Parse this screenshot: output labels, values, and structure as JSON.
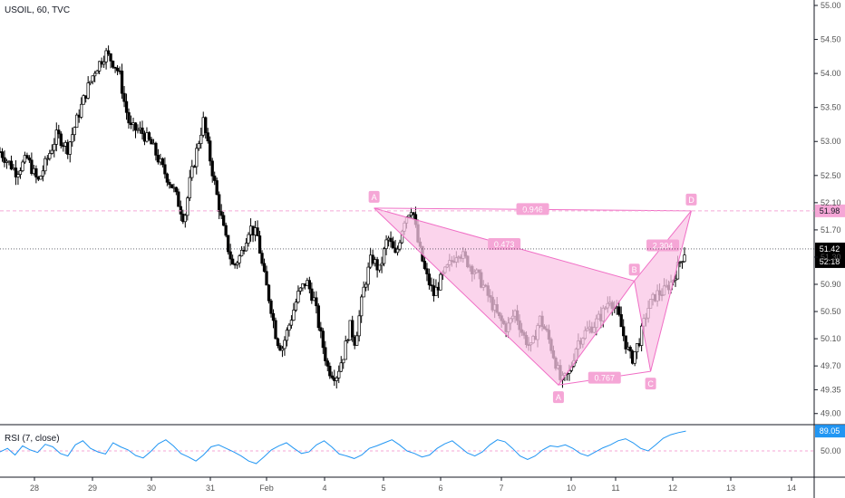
{
  "symbol_label": "USOIL, 60, TVC",
  "rsi_label": "RSI (7, close)",
  "colors": {
    "candle": "#000000",
    "pattern": "#f5a6d6",
    "pattern_fill": "#f9c5e6",
    "pattern_line": "#f06ec5",
    "last_price_bg": "#000000",
    "d_level_bg": "#f5a6d6",
    "rsi_line": "#2196f3",
    "rsi_badge_bg": "#2196f3",
    "grid": "#f0f3fa",
    "axis_text": "#555555"
  },
  "chart_data": [
    {
      "type": "candlestick",
      "symbol": "USOIL",
      "interval": "60",
      "source": "TVC",
      "ylim": [
        48.85,
        55.0
      ],
      "y_ticks": [
        "49.00",
        "49.35",
        "49.70",
        "50.10",
        "50.50",
        "50.90",
        "51.30",
        "51.70",
        "52.10",
        "52.50",
        "53.00",
        "53.50",
        "54.00",
        "54.50",
        "55.00"
      ],
      "x_ticks": [
        "28",
        "29",
        "30",
        "31",
        "Feb",
        "4",
        "5",
        "6",
        "7",
        "10",
        "11",
        "12",
        "13",
        "14"
      ],
      "last_price": "51.42",
      "countdown": "52:18",
      "d_level": "51.98",
      "close_path": [
        [
          0,
          52.85
        ],
        [
          6,
          52.55
        ],
        [
          10,
          52.75
        ],
        [
          14,
          52.4
        ],
        [
          18,
          52.8
        ],
        [
          21,
          53.1
        ],
        [
          25,
          52.9
        ],
        [
          29,
          53.4
        ],
        [
          32,
          53.75
        ],
        [
          35,
          54.05
        ],
        [
          39,
          54.3
        ],
        [
          42,
          54.15
        ],
        [
          44,
          54.0
        ],
        [
          46,
          53.55
        ],
        [
          48,
          53.2
        ],
        [
          52,
          53.15
        ],
        [
          56,
          52.95
        ],
        [
          60,
          52.6
        ],
        [
          64,
          52.3
        ],
        [
          68,
          51.85
        ],
        [
          70,
          52.4
        ],
        [
          73,
          52.95
        ],
        [
          75,
          53.3
        ],
        [
          77,
          52.85
        ],
        [
          80,
          52.2
        ],
        [
          83,
          51.6
        ],
        [
          86,
          51.15
        ],
        [
          89,
          51.35
        ],
        [
          92,
          51.75
        ],
        [
          95,
          51.6
        ],
        [
          97,
          51.1
        ],
        [
          100,
          50.55
        ],
        [
          102,
          50.1
        ],
        [
          104,
          49.95
        ],
        [
          107,
          50.35
        ],
        [
          110,
          50.75
        ],
        [
          113,
          50.95
        ],
        [
          116,
          50.65
        ],
        [
          118,
          50.2
        ],
        [
          121,
          49.65
        ],
        [
          124,
          49.55
        ],
        [
          127,
          49.9
        ],
        [
          129,
          50.3
        ],
        [
          131,
          50.05
        ],
        [
          134,
          50.8
        ],
        [
          137,
          51.3
        ],
        [
          140,
          51.1
        ],
        [
          143,
          51.6
        ],
        [
          146,
          51.3
        ],
        [
          149,
          51.85
        ],
        [
          152,
          52.05
        ],
        [
          154,
          51.55
        ],
        [
          157,
          51.05
        ],
        [
          160,
          50.75
        ],
        [
          163,
          51.0
        ],
        [
          166,
          51.2
        ],
        [
          169,
          51.4
        ],
        [
          172,
          51.25
        ],
        [
          175,
          51.1
        ],
        [
          178,
          50.9
        ],
        [
          181,
          50.65
        ],
        [
          184,
          50.4
        ],
        [
          187,
          50.25
        ],
        [
          190,
          50.5
        ],
        [
          193,
          50.15
        ],
        [
          196,
          49.95
        ],
        [
          199,
          50.4
        ],
        [
          202,
          50.15
        ],
        [
          205,
          49.75
        ],
        [
          207,
          49.45
        ],
        [
          210,
          49.6
        ],
        [
          213,
          50.05
        ],
        [
          216,
          50.2
        ],
        [
          219,
          50.3
        ],
        [
          222,
          50.45
        ],
        [
          225,
          50.7
        ],
        [
          228,
          50.45
        ],
        [
          231,
          50.0
        ],
        [
          233,
          49.78
        ],
        [
          236,
          50.1
        ],
        [
          239,
          50.55
        ],
        [
          242,
          50.75
        ],
        [
          245,
          50.8
        ],
        [
          248,
          50.95
        ],
        [
          251,
          51.25
        ],
        [
          253,
          51.42
        ]
      ],
      "x_range": [
        0,
        300
      ],
      "pattern_points": [
        {
          "label": "A",
          "x": 138,
          "y": 52.02
        },
        {
          "label": "A",
          "x": 206,
          "y": 49.42
        },
        {
          "label": "B",
          "x": 234,
          "y": 50.95
        },
        {
          "label": "C",
          "x": 240,
          "y": 49.62
        },
        {
          "label": "D",
          "x": 255,
          "y": 51.98
        }
      ],
      "pattern_ratios": [
        {
          "label": "0.946",
          "between": [
            "A1",
            "D"
          ]
        },
        {
          "label": "0.473",
          "between": [
            "A1",
            "B"
          ]
        },
        {
          "label": "0.767",
          "between": [
            "A2",
            "C"
          ]
        },
        {
          "label": "2.304",
          "between": [
            "B",
            "D"
          ]
        }
      ]
    },
    {
      "type": "line",
      "name": "RSI (7, close)",
      "ylim": [
        0,
        100
      ],
      "y_ticks": [
        "50.00"
      ],
      "last_value": "89.05",
      "values": [
        48,
        55,
        42,
        60,
        52,
        47,
        63,
        58,
        45,
        40,
        62,
        70,
        55,
        48,
        44,
        66,
        58,
        52,
        41,
        36,
        49,
        64,
        72,
        60,
        45,
        38,
        30,
        42,
        58,
        62,
        55,
        48,
        40,
        30,
        25,
        38,
        52,
        60,
        66,
        55,
        45,
        48,
        62,
        70,
        58,
        44,
        40,
        35,
        42,
        55,
        60,
        66,
        72,
        62,
        50,
        45,
        38,
        42,
        55,
        64,
        70,
        58,
        46,
        40,
        48,
        62,
        72,
        68,
        55,
        40,
        33,
        40,
        52,
        60,
        58,
        62,
        55,
        45,
        40,
        48,
        56,
        62,
        70,
        74,
        66,
        55,
        50,
        62,
        75,
        82,
        86,
        89.05
      ]
    }
  ]
}
